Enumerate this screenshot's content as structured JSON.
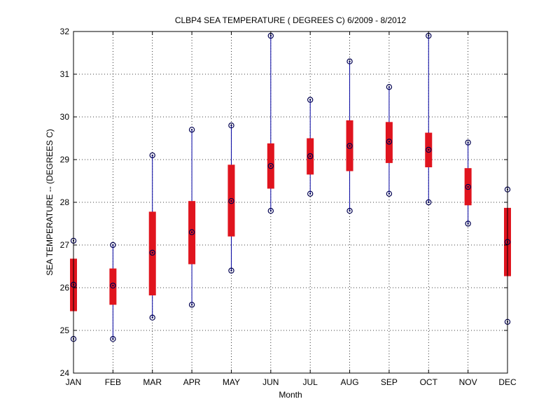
{
  "chart_data": {
    "type": "box",
    "title": "CLBP4  SEA TEMPERATURE ( DEGREES C) 6/2009 - 8/2012",
    "xlabel": "Month",
    "ylabel": "SEA TEMPERATURE -- (DEGREES C)",
    "ylim": [
      24,
      32
    ],
    "yticks": [
      24,
      25,
      26,
      27,
      28,
      29,
      30,
      31,
      32
    ],
    "grid": true,
    "categories": [
      "JAN",
      "FEB",
      "MAR",
      "APR",
      "MAY",
      "JUN",
      "JUL",
      "AUG",
      "SEP",
      "OCT",
      "NOV",
      "DEC"
    ],
    "series": [
      {
        "min": 24.8,
        "q1": 25.45,
        "median": 26.07,
        "q3": 26.68,
        "max": 27.1
      },
      {
        "min": 24.8,
        "q1": 25.6,
        "median": 26.05,
        "q3": 26.45,
        "max": 27.0
      },
      {
        "min": 25.3,
        "q1": 25.82,
        "median": 26.82,
        "q3": 27.78,
        "max": 29.1
      },
      {
        "min": 25.6,
        "q1": 26.55,
        "median": 27.3,
        "q3": 28.03,
        "max": 29.7
      },
      {
        "min": 26.4,
        "q1": 27.2,
        "median": 28.03,
        "q3": 28.88,
        "max": 29.8
      },
      {
        "min": 27.8,
        "q1": 28.32,
        "median": 28.85,
        "q3": 29.38,
        "max": 31.9
      },
      {
        "min": 28.2,
        "q1": 28.65,
        "median": 29.08,
        "q3": 29.5,
        "max": 30.4
      },
      {
        "min": 27.8,
        "q1": 28.73,
        "median": 29.32,
        "q3": 29.92,
        "max": 31.3
      },
      {
        "min": 28.2,
        "q1": 28.92,
        "median": 29.42,
        "q3": 29.88,
        "max": 30.7
      },
      {
        "min": 28.0,
        "q1": 28.82,
        "median": 29.23,
        "q3": 29.63,
        "max": 31.9
      },
      {
        "min": 27.5,
        "q1": 27.93,
        "median": 28.36,
        "q3": 28.8,
        "max": 29.4
      },
      {
        "min": 25.2,
        "q1": 26.27,
        "median": 27.07,
        "q3": 27.87,
        "max": 28.3
      }
    ],
    "colors": {
      "box": "#e0141e",
      "whisker": "#0000a0",
      "marker": "#000050",
      "grid": "#000000",
      "axis": "#000000"
    }
  }
}
